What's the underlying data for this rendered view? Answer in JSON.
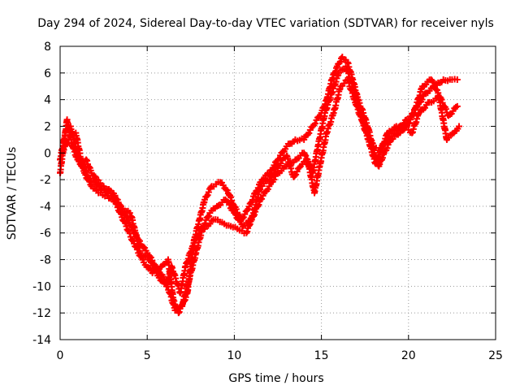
{
  "chart_data": {
    "type": "scatter",
    "title": "Day 294 of 2024, Sidereal Day-to-day VTEC variation (SDTVAR) for receiver nyls",
    "xlabel": "GPS time / hours",
    "ylabel": "SDTVAR / TECUs",
    "xlim": [
      0,
      25
    ],
    "ylim": [
      -14,
      8
    ],
    "xticks": [
      "0",
      "5",
      "10",
      "15",
      "20",
      "25"
    ],
    "yticks": [
      "-14",
      "-12",
      "-10",
      "-8",
      "-6",
      "-4",
      "-2",
      "0",
      "2",
      "4",
      "6",
      "8"
    ],
    "grid": true,
    "marker": "+",
    "color": "#ff0000",
    "series": [
      {
        "values": [
          [
            0.0,
            -1.5
          ],
          [
            0.2,
            0.5
          ],
          [
            0.4,
            2.5
          ],
          [
            0.7,
            0.5
          ],
          [
            1.0,
            -0.5
          ],
          [
            1.3,
            -1.0
          ],
          [
            1.5,
            -0.5
          ],
          [
            1.8,
            -1.5
          ],
          [
            2.1,
            -2.0
          ],
          [
            2.5,
            -2.5
          ],
          [
            3.0,
            -3.0
          ],
          [
            3.3,
            -3.5
          ],
          [
            3.6,
            -4.5
          ],
          [
            3.9,
            -5.0
          ],
          [
            4.2,
            -5.8
          ],
          [
            4.5,
            -6.5
          ],
          [
            5.0,
            -7.5
          ],
          [
            5.5,
            -8.5
          ],
          [
            6.0,
            -9.5
          ],
          [
            6.3,
            -10.5
          ],
          [
            6.6,
            -11.8
          ],
          [
            7.0,
            -11.5
          ],
          [
            7.3,
            -10.5
          ],
          [
            7.5,
            -8.5
          ],
          [
            7.7,
            -6.5
          ],
          [
            8.0,
            -5.0
          ],
          [
            8.3,
            -3.5
          ],
          [
            8.7,
            -2.5
          ],
          [
            9.2,
            -2.2
          ],
          [
            9.6,
            -2.8
          ],
          [
            10.0,
            -4.0
          ],
          [
            10.4,
            -5.0
          ],
          [
            10.8,
            -4.2
          ],
          [
            11.2,
            -3.0
          ],
          [
            11.6,
            -2.0
          ],
          [
            12.0,
            -1.5
          ],
          [
            12.5,
            -0.5
          ],
          [
            13.0,
            0.5
          ],
          [
            13.5,
            1.0
          ],
          [
            14.0,
            1.0
          ],
          [
            14.5,
            2.0
          ],
          [
            15.0,
            3.0
          ],
          [
            15.3,
            4.0
          ],
          [
            15.6,
            5.5
          ],
          [
            15.9,
            6.5
          ],
          [
            16.2,
            7.2
          ],
          [
            16.5,
            6.8
          ],
          [
            16.8,
            5.5
          ],
          [
            17.1,
            4.0
          ],
          [
            17.4,
            3.0
          ],
          [
            17.7,
            1.8
          ],
          [
            18.0,
            0.2
          ],
          [
            18.3,
            -1.0
          ],
          [
            18.6,
            0.0
          ],
          [
            19.0,
            1.0
          ],
          [
            19.5,
            1.5
          ],
          [
            20.0,
            2.2
          ],
          [
            20.5,
            3.5
          ],
          [
            21.0,
            4.5
          ],
          [
            21.5,
            5.0
          ],
          [
            22.0,
            5.5
          ],
          [
            22.5,
            5.5
          ],
          [
            22.8,
            5.5
          ]
        ]
      },
      {
        "values": [
          [
            0.0,
            -0.5
          ],
          [
            0.3,
            1.5
          ],
          [
            0.6,
            2.0
          ],
          [
            1.0,
            -0.2
          ],
          [
            1.4,
            -1.5
          ],
          [
            1.8,
            -2.5
          ],
          [
            2.2,
            -3.0
          ],
          [
            2.7,
            -3.2
          ],
          [
            3.2,
            -3.8
          ],
          [
            3.8,
            -5.5
          ],
          [
            4.3,
            -7.0
          ],
          [
            4.8,
            -8.2
          ],
          [
            5.3,
            -9.0
          ],
          [
            5.8,
            -8.5
          ],
          [
            6.2,
            -8.0
          ],
          [
            6.5,
            -11.0
          ],
          [
            6.8,
            -12.0
          ],
          [
            7.1,
            -11.0
          ],
          [
            7.4,
            -9.5
          ],
          [
            7.8,
            -7.5
          ],
          [
            8.2,
            -5.5
          ],
          [
            8.6,
            -4.5
          ],
          [
            9.0,
            -4.0
          ],
          [
            9.5,
            -3.5
          ],
          [
            10.0,
            -4.5
          ],
          [
            10.5,
            -5.5
          ],
          [
            11.0,
            -5.0
          ],
          [
            11.5,
            -3.5
          ],
          [
            12.0,
            -2.5
          ],
          [
            12.5,
            -1.5
          ],
          [
            13.0,
            -1.0
          ],
          [
            13.5,
            -0.5
          ],
          [
            14.0,
            0.0
          ],
          [
            14.5,
            -1.5
          ],
          [
            14.8,
            0.5
          ],
          [
            15.2,
            3.0
          ],
          [
            15.6,
            4.5
          ],
          [
            16.0,
            6.0
          ],
          [
            16.4,
            6.5
          ],
          [
            16.8,
            5.0
          ],
          [
            17.2,
            3.2
          ],
          [
            17.6,
            1.5
          ],
          [
            18.0,
            0.5
          ],
          [
            18.4,
            0.2
          ],
          [
            18.8,
            1.5
          ],
          [
            19.3,
            2.0
          ],
          [
            19.8,
            2.0
          ],
          [
            20.2,
            1.5
          ],
          [
            20.6,
            3.0
          ],
          [
            21.2,
            3.8
          ],
          [
            21.8,
            4.2
          ],
          [
            22.3,
            2.8
          ],
          [
            22.8,
            3.5
          ]
        ]
      },
      {
        "values": [
          [
            0.1,
            0.0
          ],
          [
            0.5,
            1.0
          ],
          [
            0.9,
            1.5
          ],
          [
            1.2,
            -0.5
          ],
          [
            1.6,
            -1.8
          ],
          [
            2.0,
            -2.2
          ],
          [
            2.4,
            -2.8
          ],
          [
            2.9,
            -3.0
          ],
          [
            3.4,
            -4.0
          ],
          [
            4.0,
            -4.5
          ],
          [
            4.1,
            -4.8
          ],
          [
            4.6,
            -7.5
          ],
          [
            5.1,
            -8.0
          ],
          [
            5.6,
            -9.2
          ],
          [
            6.1,
            -10.0
          ],
          [
            6.4,
            -8.5
          ],
          [
            6.9,
            -10.5
          ],
          [
            7.2,
            -8.5
          ],
          [
            7.6,
            -7.0
          ],
          [
            8.0,
            -6.0
          ],
          [
            8.4,
            -5.5
          ],
          [
            8.8,
            -5.0
          ],
          [
            9.3,
            -5.2
          ],
          [
            9.8,
            -5.5
          ],
          [
            10.3,
            -5.8
          ],
          [
            10.7,
            -6.0
          ],
          [
            11.1,
            -4.5
          ],
          [
            11.5,
            -2.5
          ],
          [
            12.0,
            -2.0
          ],
          [
            12.5,
            -1.0
          ],
          [
            13.0,
            -0.2
          ],
          [
            13.4,
            -1.8
          ],
          [
            13.8,
            -1.0
          ],
          [
            14.2,
            -0.5
          ],
          [
            14.6,
            -3.0
          ],
          [
            14.9,
            -1.0
          ],
          [
            15.3,
            1.5
          ],
          [
            15.7,
            3.0
          ],
          [
            16.1,
            5.0
          ],
          [
            16.5,
            5.5
          ],
          [
            16.9,
            4.0
          ],
          [
            17.3,
            2.5
          ],
          [
            17.7,
            1.0
          ],
          [
            18.1,
            -0.8
          ],
          [
            18.5,
            0.5
          ],
          [
            18.9,
            1.2
          ],
          [
            19.4,
            1.8
          ],
          [
            19.9,
            2.5
          ],
          [
            20.3,
            3.0
          ],
          [
            20.8,
            5.0
          ],
          [
            21.3,
            5.5
          ],
          [
            21.7,
            4.5
          ],
          [
            22.2,
            1.0
          ],
          [
            22.6,
            1.5
          ],
          [
            22.9,
            2.0
          ]
        ]
      }
    ]
  }
}
